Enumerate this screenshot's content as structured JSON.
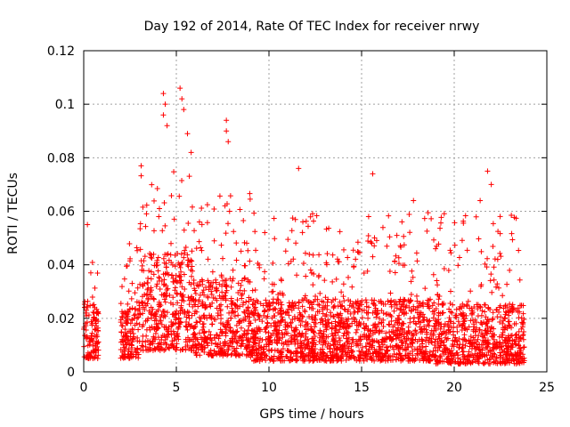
{
  "chart_data": {
    "type": "scatter",
    "title": "Day 192 of 2014, Rate Of TEC Index for receiver nrwy",
    "xlabel": "GPS time / hours",
    "ylabel": "ROTI / TECUs",
    "xlim": [
      0,
      25
    ],
    "ylim": [
      0,
      0.12
    ],
    "xticks": [
      0,
      5,
      10,
      15,
      20,
      25
    ],
    "xtick_labels": [
      "0",
      "5",
      "10",
      "15",
      "20",
      "25"
    ],
    "yticks": [
      0,
      0.02,
      0.04,
      0.06,
      0.08,
      0.1,
      0.12
    ],
    "ytick_labels": [
      "0",
      "0.02",
      "0.04",
      "0.06",
      "0.08",
      "0.1",
      "0.12"
    ],
    "grid": true,
    "marker": "+",
    "color": "#ff0000",
    "density_profile": {
      "description": "approximate envelope of the dense point cloud (data units)",
      "segments": [
        {
          "x_start": 0.0,
          "x_end": 0.8,
          "y_low": 0.005,
          "y_high": 0.041,
          "y_center": 0.016
        },
        {
          "x_start": 2.0,
          "x_end": 3.0,
          "y_low": 0.005,
          "y_high": 0.05,
          "y_center": 0.015
        },
        {
          "x_start": 3.0,
          "x_end": 6.0,
          "y_low": 0.008,
          "y_high": 0.075,
          "y_center": 0.028
        },
        {
          "x_start": 6.0,
          "x_end": 9.0,
          "y_low": 0.006,
          "y_high": 0.07,
          "y_center": 0.022
        },
        {
          "x_start": 9.0,
          "x_end": 19.0,
          "y_low": 0.004,
          "y_high": 0.06,
          "y_center": 0.017
        },
        {
          "x_start": 19.0,
          "x_end": 23.8,
          "y_low": 0.003,
          "y_high": 0.06,
          "y_center": 0.016
        }
      ]
    },
    "notable_points": [
      {
        "x": 4.3,
        "y": 0.104
      },
      {
        "x": 4.4,
        "y": 0.1
      },
      {
        "x": 4.3,
        "y": 0.096
      },
      {
        "x": 5.2,
        "y": 0.106
      },
      {
        "x": 5.3,
        "y": 0.102
      },
      {
        "x": 5.4,
        "y": 0.098
      },
      {
        "x": 4.5,
        "y": 0.092
      },
      {
        "x": 5.6,
        "y": 0.089
      },
      {
        "x": 7.7,
        "y": 0.094
      },
      {
        "x": 7.7,
        "y": 0.09
      },
      {
        "x": 7.8,
        "y": 0.086
      },
      {
        "x": 5.8,
        "y": 0.082
      },
      {
        "x": 11.6,
        "y": 0.076
      },
      {
        "x": 15.6,
        "y": 0.074
      },
      {
        "x": 21.8,
        "y": 0.075
      },
      {
        "x": 3.1,
        "y": 0.077
      },
      {
        "x": 22.0,
        "y": 0.07
      },
      {
        "x": 21.4,
        "y": 0.064
      },
      {
        "x": 0.2,
        "y": 0.055
      },
      {
        "x": 17.8,
        "y": 0.064
      }
    ]
  }
}
